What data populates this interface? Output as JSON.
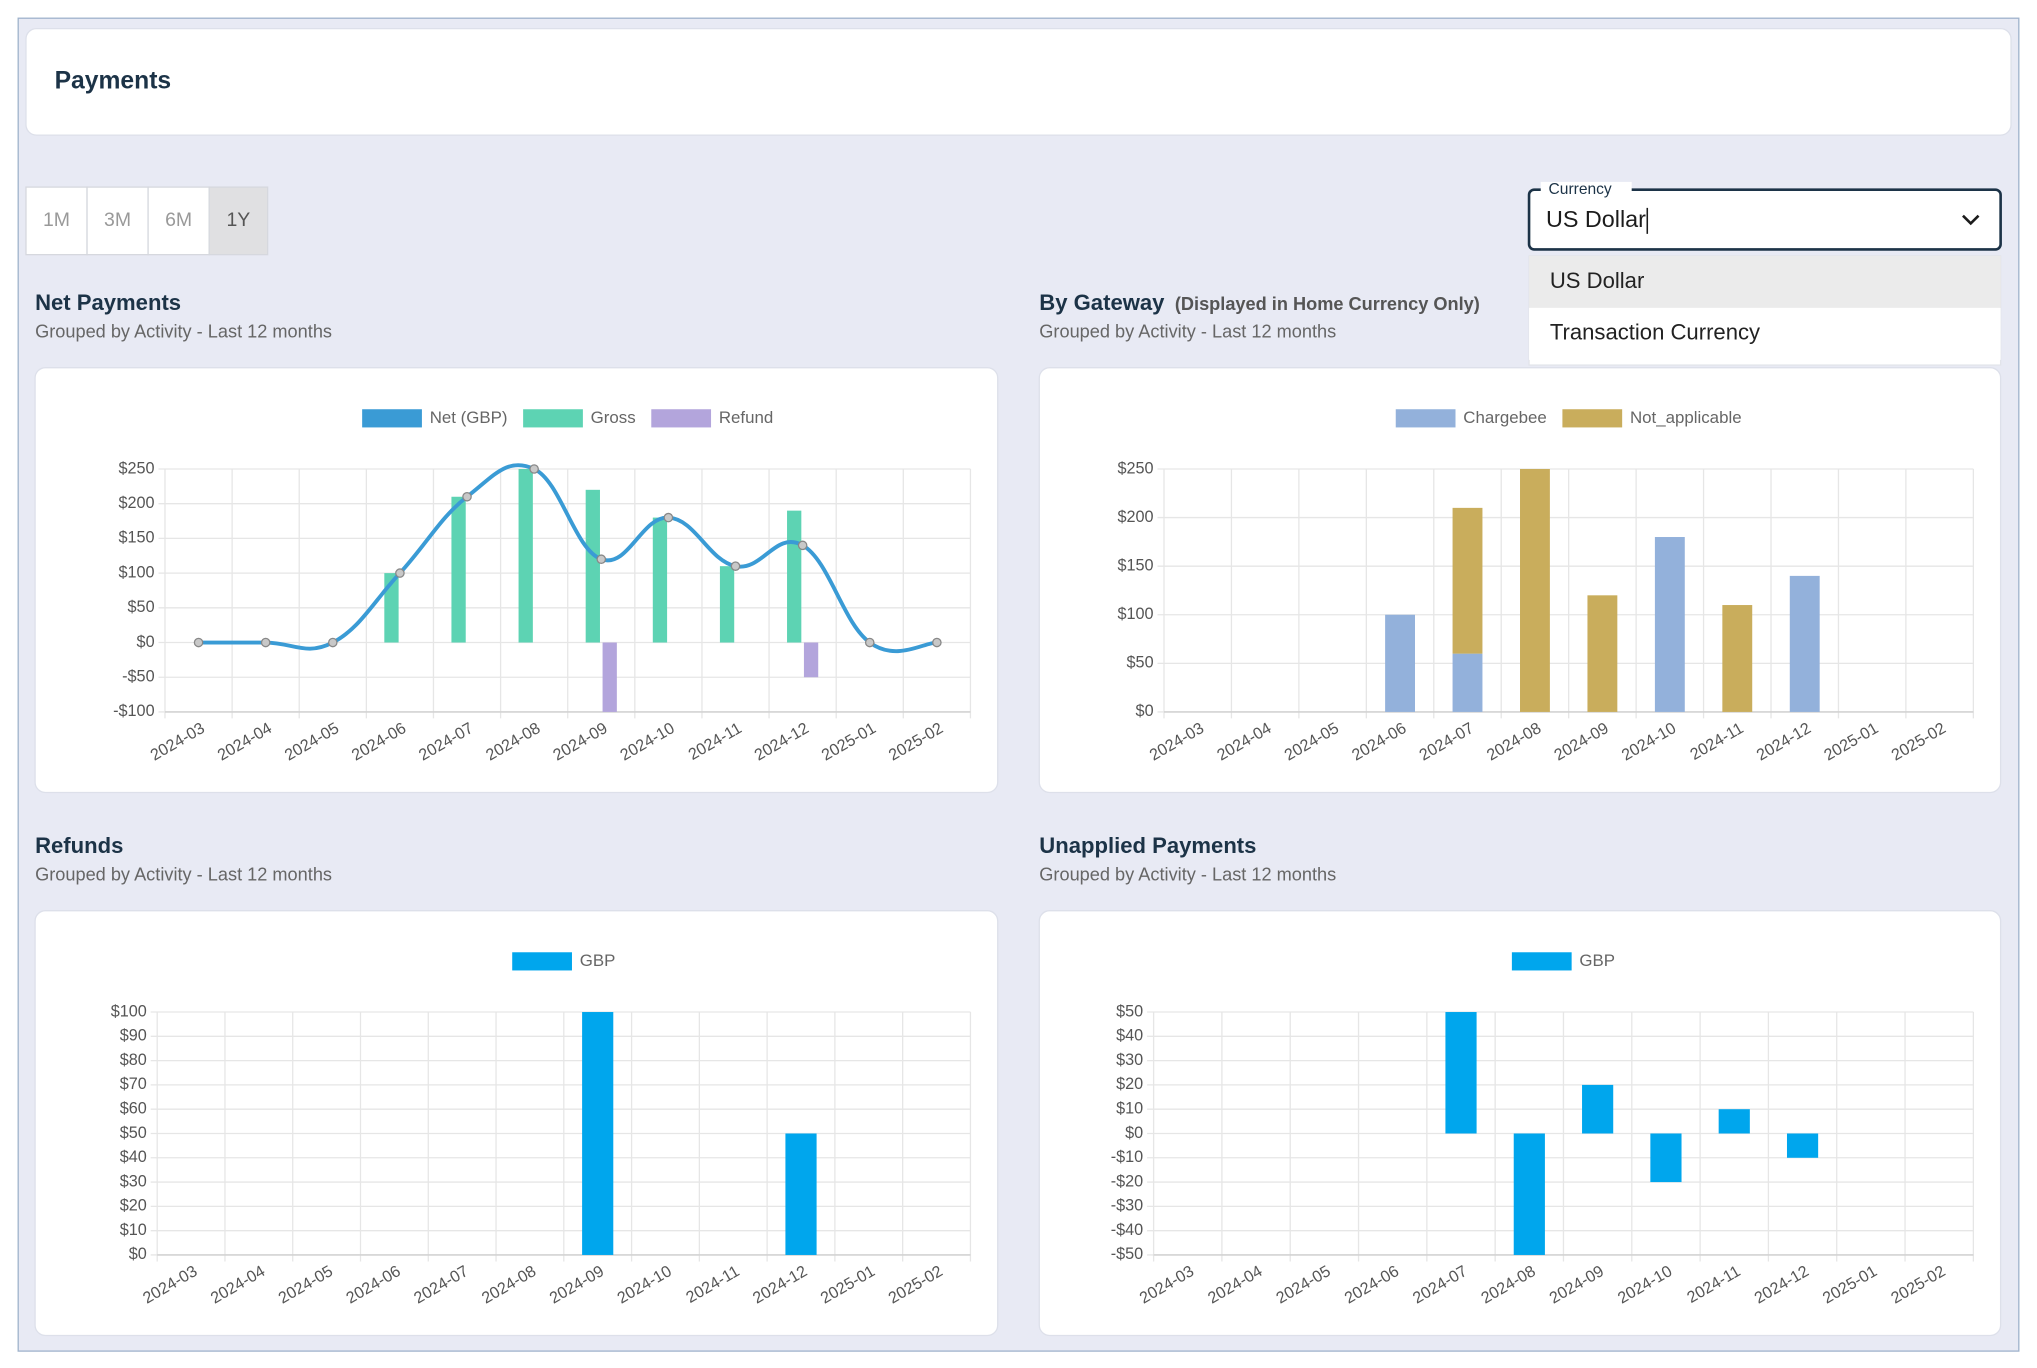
{
  "header": {
    "title": "Payments"
  },
  "range_buttons": [
    {
      "label": "1M"
    },
    {
      "label": "3M"
    },
    {
      "label": "6M"
    },
    {
      "label": "1Y",
      "selected": true
    }
  ],
  "currency": {
    "label": "Currency",
    "value": "US Dollar",
    "options": [
      {
        "label": "US Dollar",
        "highlighted": true
      },
      {
        "label": "Transaction Currency"
      }
    ]
  },
  "chart_data": [
    {
      "type": "bar",
      "title": "Net Payments",
      "subtitle": "Grouped by Activity - Last 12 months",
      "categories": [
        "2024-03",
        "2024-04",
        "2024-05",
        "2024-06",
        "2024-07",
        "2024-08",
        "2024-09",
        "2024-10",
        "2024-11",
        "2024-12",
        "2025-01",
        "2025-02"
      ],
      "series": [
        {
          "name": "Net (GBP)",
          "type": "line",
          "color": "#3a9bd5",
          "values": [
            0,
            0,
            0,
            100,
            210,
            250,
            120,
            180,
            110,
            140,
            0,
            0
          ]
        },
        {
          "name": "Gross",
          "color": "#5dd3b3",
          "values": [
            0,
            0,
            0,
            100,
            210,
            250,
            220,
            180,
            110,
            190,
            0,
            0
          ]
        },
        {
          "name": "Refund",
          "color": "#b3a5dc",
          "values": [
            0,
            0,
            0,
            0,
            0,
            0,
            -100,
            0,
            0,
            -50,
            0,
            0
          ]
        }
      ],
      "ylim": [
        -100,
        250
      ],
      "yticks": [
        {
          "value": -100,
          "label": "-$100"
        },
        {
          "value": -50,
          "label": "-$50"
        },
        {
          "value": 0,
          "label": "$0"
        },
        {
          "value": 50,
          "label": "$50"
        },
        {
          "value": 100,
          "label": "$100"
        },
        {
          "value": 150,
          "label": "$150"
        },
        {
          "value": 200,
          "label": "$200"
        },
        {
          "value": 250,
          "label": "$250"
        }
      ],
      "grid": true,
      "legend": "top"
    },
    {
      "type": "bar",
      "stacked": true,
      "title": "By Gateway",
      "title_note": "(Displayed in Home Currency Only)",
      "subtitle": "Grouped by Activity - Last 12 months",
      "categories": [
        "2024-03",
        "2024-04",
        "2024-05",
        "2024-06",
        "2024-07",
        "2024-08",
        "2024-09",
        "2024-10",
        "2024-11",
        "2024-12",
        "2025-01",
        "2025-02"
      ],
      "series": [
        {
          "name": "Chargebee",
          "color": "#93b1db",
          "values": [
            0,
            0,
            0,
            100,
            60,
            0,
            0,
            180,
            0,
            140,
            0,
            0
          ]
        },
        {
          "name": "Not_applicable",
          "color": "#c9ad5c",
          "values": [
            0,
            0,
            0,
            0,
            150,
            250,
            120,
            0,
            110,
            0,
            0,
            0
          ]
        }
      ],
      "ylim": [
        0,
        250
      ],
      "yticks": [
        {
          "value": 0,
          "label": "$0"
        },
        {
          "value": 50,
          "label": "$50"
        },
        {
          "value": 100,
          "label": "$100"
        },
        {
          "value": 150,
          "label": "$150"
        },
        {
          "value": 200,
          "label": "$200"
        },
        {
          "value": 250,
          "label": "$250"
        }
      ],
      "grid": true,
      "legend": "top"
    },
    {
      "type": "bar",
      "title": "Refunds",
      "subtitle": "Grouped by Activity - Last 12 months",
      "categories": [
        "2024-03",
        "2024-04",
        "2024-05",
        "2024-06",
        "2024-07",
        "2024-08",
        "2024-09",
        "2024-10",
        "2024-11",
        "2024-12",
        "2025-01",
        "2025-02"
      ],
      "series": [
        {
          "name": "GBP",
          "color": "#00a6ed",
          "values": [
            0,
            0,
            0,
            0,
            0,
            0,
            100,
            0,
            0,
            50,
            0,
            0
          ]
        }
      ],
      "ylim": [
        0,
        100
      ],
      "yticks": [
        {
          "value": 0,
          "label": "$0"
        },
        {
          "value": 10,
          "label": "$10"
        },
        {
          "value": 20,
          "label": "$20"
        },
        {
          "value": 30,
          "label": "$30"
        },
        {
          "value": 40,
          "label": "$40"
        },
        {
          "value": 50,
          "label": "$50"
        },
        {
          "value": 60,
          "label": "$60"
        },
        {
          "value": 70,
          "label": "$70"
        },
        {
          "value": 80,
          "label": "$80"
        },
        {
          "value": 90,
          "label": "$90"
        },
        {
          "value": 100,
          "label": "$100"
        }
      ],
      "grid": true,
      "legend": "top"
    },
    {
      "type": "bar",
      "title": "Unapplied Payments",
      "subtitle": "Grouped by Activity - Last 12 months",
      "categories": [
        "2024-03",
        "2024-04",
        "2024-05",
        "2024-06",
        "2024-07",
        "2024-08",
        "2024-09",
        "2024-10",
        "2024-11",
        "2024-12",
        "2025-01",
        "2025-02"
      ],
      "series": [
        {
          "name": "GBP",
          "color": "#00a6ed",
          "values": [
            0,
            0,
            0,
            0,
            50,
            -50,
            20,
            -20,
            10,
            -10,
            0,
            0
          ]
        }
      ],
      "ylim": [
        -50,
        50
      ],
      "yticks": [
        {
          "value": -50,
          "label": "-$50"
        },
        {
          "value": -40,
          "label": "-$40"
        },
        {
          "value": -30,
          "label": "-$30"
        },
        {
          "value": -20,
          "label": "-$20"
        },
        {
          "value": -10,
          "label": "-$10"
        },
        {
          "value": 0,
          "label": "$0"
        },
        {
          "value": 10,
          "label": "$10"
        },
        {
          "value": 20,
          "label": "$20"
        },
        {
          "value": 30,
          "label": "$30"
        },
        {
          "value": 40,
          "label": "$40"
        },
        {
          "value": 50,
          "label": "$50"
        }
      ],
      "grid": true,
      "legend": "top"
    }
  ]
}
